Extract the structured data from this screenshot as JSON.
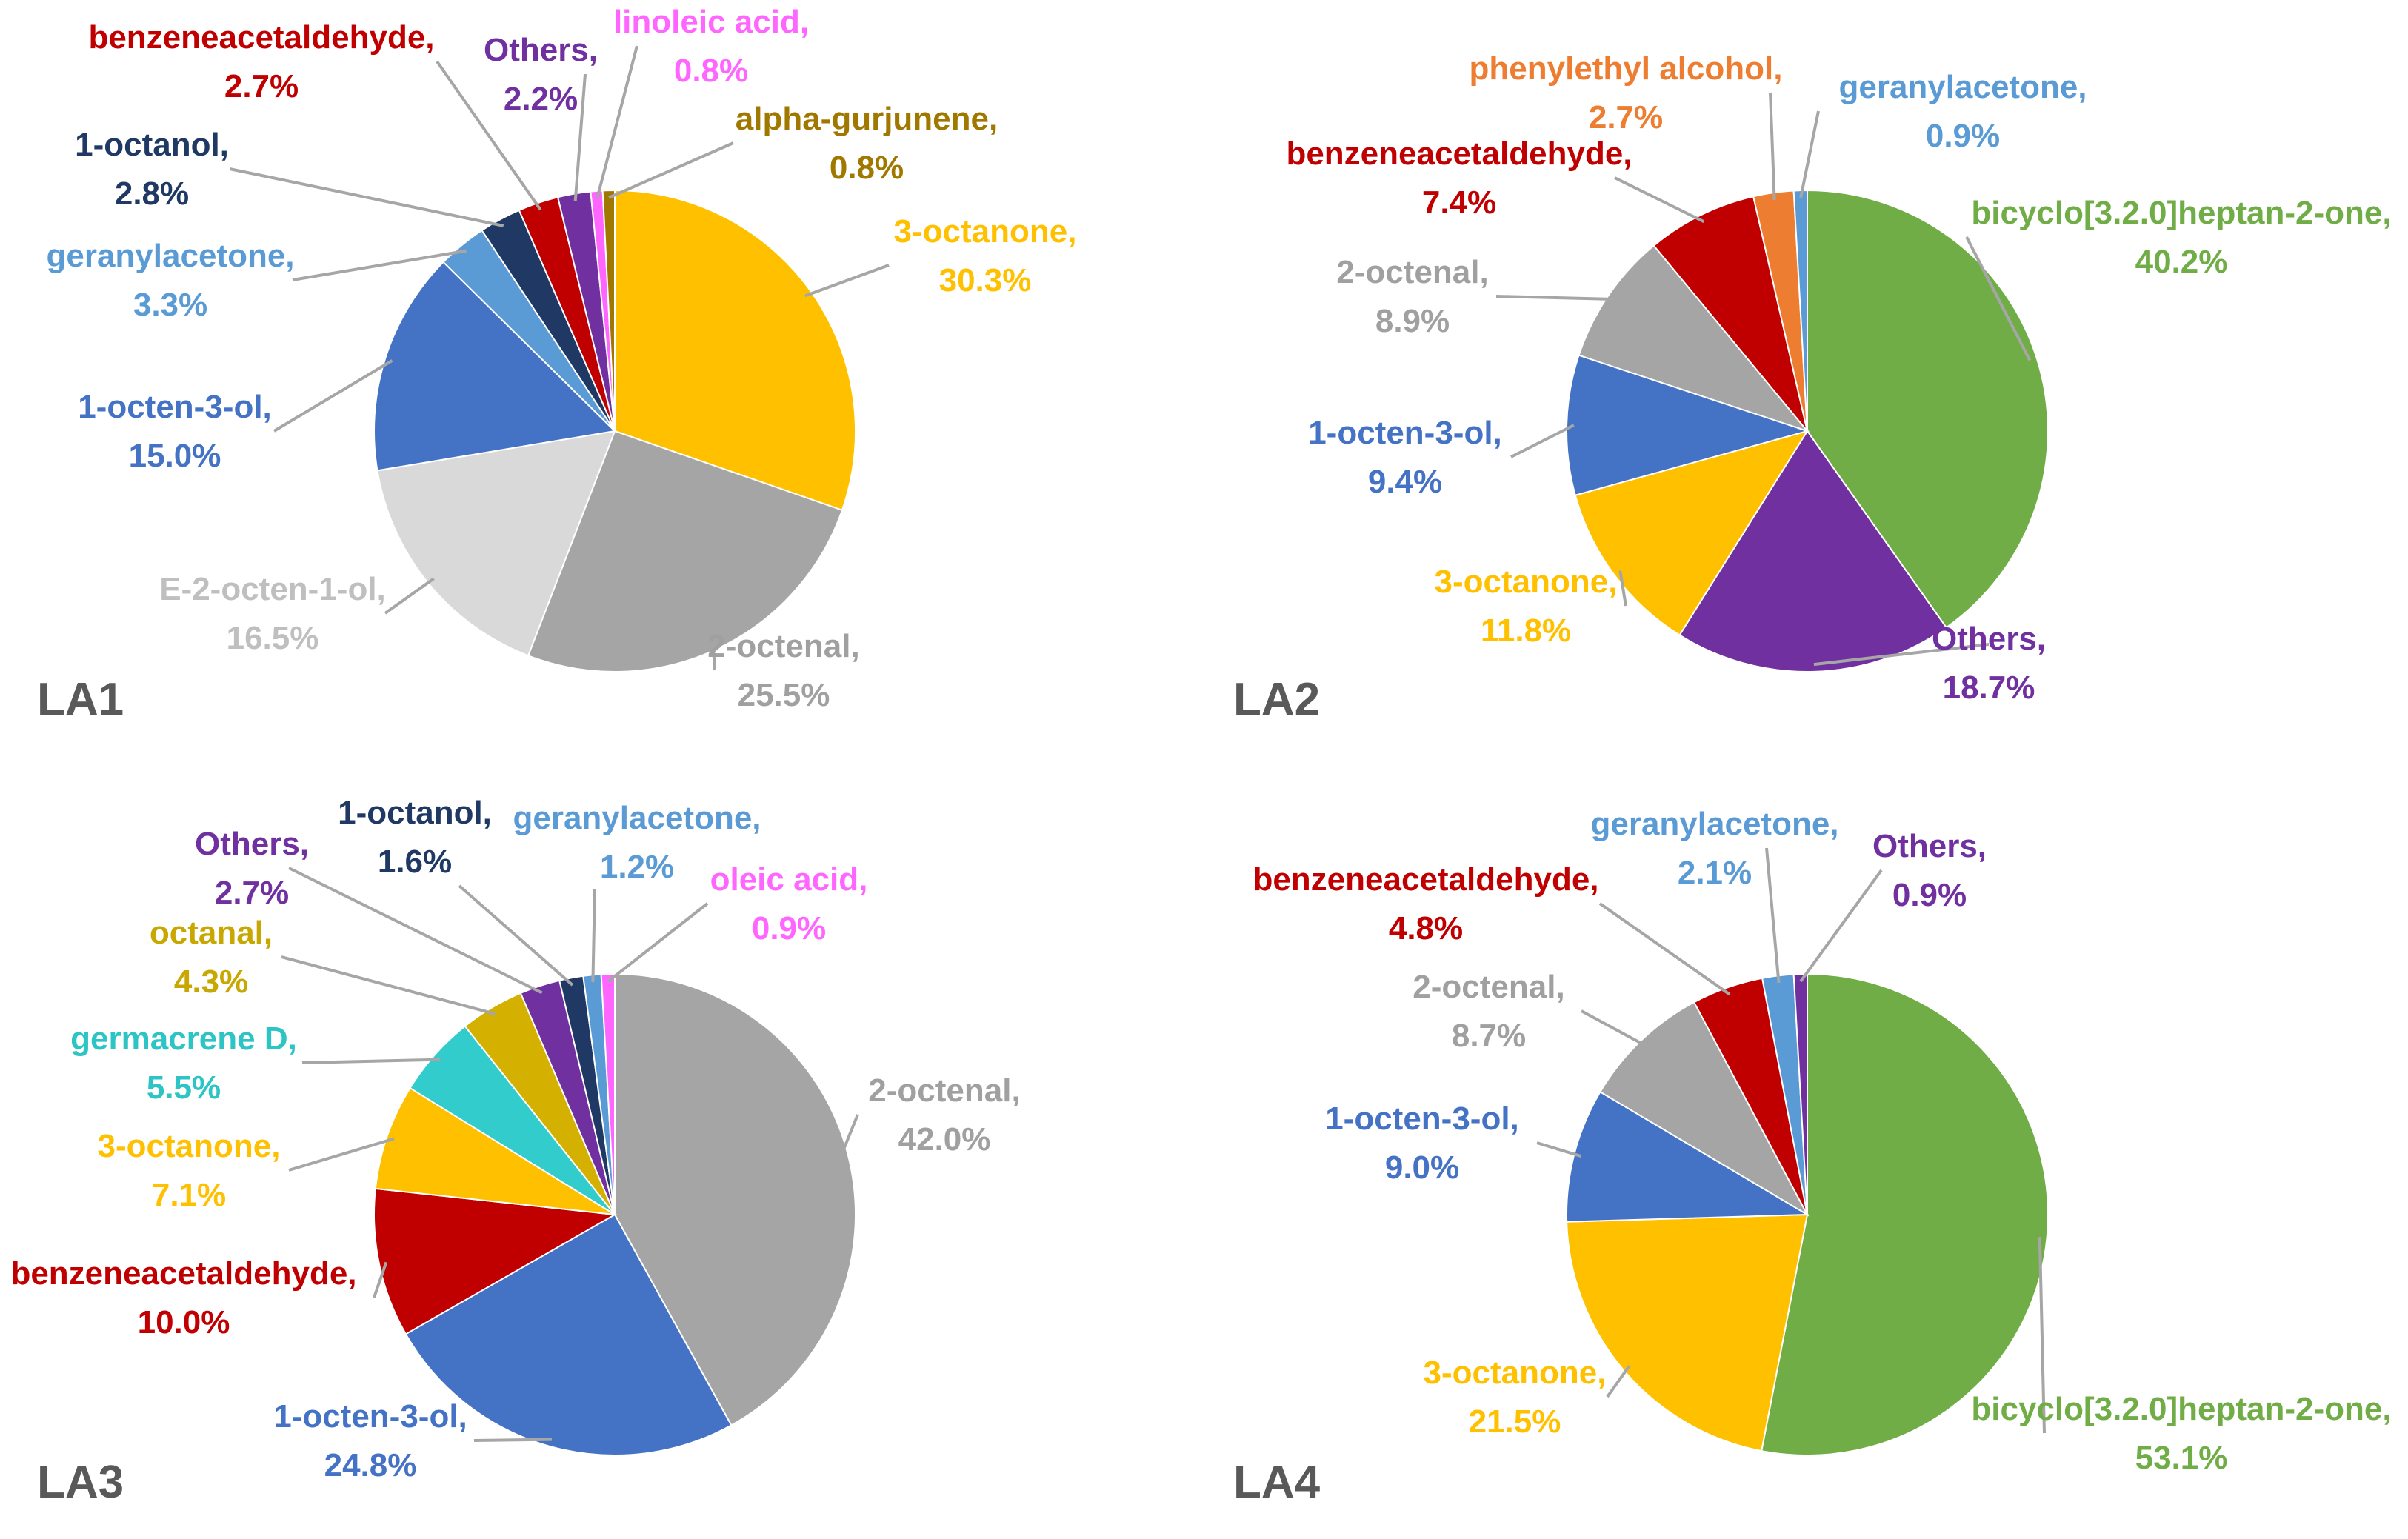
{
  "chart_data": [
    {
      "type": "pie",
      "title": "LA1",
      "slices": [
        {
          "label": "3-octanone",
          "value": 30.3,
          "display": "30.3%",
          "color": "#FFC000"
        },
        {
          "label": "2-octenal",
          "value": 25.5,
          "display": "25.5%",
          "color": "#A5A5A5"
        },
        {
          "label": "E-2-octen-1-ol",
          "value": 16.5,
          "display": "16.5%",
          "color": "#D9D9D9"
        },
        {
          "label": "1-octen-3-ol",
          "value": 15.0,
          "display": "15.0%",
          "color": "#4472C4"
        },
        {
          "label": "geranylacetone",
          "value": 3.3,
          "display": "3.3%",
          "color": "#5B9BD5"
        },
        {
          "label": "1-octanol",
          "value": 2.8,
          "display": "2.8%",
          "color": "#203864"
        },
        {
          "label": "benzeneacetaldehyde",
          "value": 2.7,
          "display": "2.7%",
          "color": "#C00000"
        },
        {
          "label": "Others",
          "value": 2.2,
          "display": "2.2%",
          "color": "#7030A0"
        },
        {
          "label": "linoleic acid",
          "value": 0.8,
          "display": "0.8%",
          "color": "#FF66FF"
        },
        {
          "label": "alpha-gurjunene",
          "value": 0.8,
          "display": "0.8%",
          "color": "#A07800"
        }
      ]
    },
    {
      "type": "pie",
      "title": "LA2",
      "slices": [
        {
          "label": "bicyclo[3.2.0]heptan-2-one",
          "value": 40.2,
          "display": "40.2%",
          "color": "#70AD47"
        },
        {
          "label": "Others",
          "value": 18.7,
          "display": "18.7%",
          "color": "#7030A0"
        },
        {
          "label": "3-octanone",
          "value": 11.8,
          "display": "11.8%",
          "color": "#FFC000"
        },
        {
          "label": "1-octen-3-ol",
          "value": 9.4,
          "display": "9.4%",
          "color": "#4472C4"
        },
        {
          "label": "2-octenal",
          "value": 8.9,
          "display": "8.9%",
          "color": "#A5A5A5"
        },
        {
          "label": "benzeneacetaldehyde",
          "value": 7.4,
          "display": "7.4%",
          "color": "#C00000"
        },
        {
          "label": "phenylethyl alcohol",
          "value": 2.7,
          "display": "2.7%",
          "color": "#ED7D31"
        },
        {
          "label": "geranylacetone",
          "value": 0.9,
          "display": "0.9%",
          "color": "#5B9BD5"
        }
      ]
    },
    {
      "type": "pie",
      "title": "LA3",
      "slices": [
        {
          "label": "2-octenal",
          "value": 42.0,
          "display": "42.0%",
          "color": "#A5A5A5"
        },
        {
          "label": "1-octen-3-ol",
          "value": 24.8,
          "display": "24.8%",
          "color": "#4472C4"
        },
        {
          "label": "benzeneacetaldehyde",
          "value": 10.0,
          "display": "10.0%",
          "color": "#C00000"
        },
        {
          "label": "3-octanone",
          "value": 7.1,
          "display": "7.1%",
          "color": "#FFC000"
        },
        {
          "label": "germacrene D",
          "value": 5.5,
          "display": "5.5%",
          "color": "#33CCCC"
        },
        {
          "label": "octanal",
          "value": 4.3,
          "display": "4.3%",
          "color": "#D4B000"
        },
        {
          "label": "Others",
          "value": 2.7,
          "display": "2.7%",
          "color": "#7030A0"
        },
        {
          "label": "1-octanol",
          "value": 1.6,
          "display": "1.6%",
          "color": "#203864"
        },
        {
          "label": "geranylacetone",
          "value": 1.2,
          "display": "1.2%",
          "color": "#5B9BD5"
        },
        {
          "label": "oleic acid",
          "value": 0.9,
          "display": "0.9%",
          "color": "#FF66FF"
        }
      ]
    },
    {
      "type": "pie",
      "title": "LA4",
      "slices": [
        {
          "label": "bicyclo[3.2.0]heptan-2-one",
          "value": 53.1,
          "display": "53.1%",
          "color": "#70AD47"
        },
        {
          "label": "3-octanone",
          "value": 21.5,
          "display": "21.5%",
          "color": "#FFC000"
        },
        {
          "label": "1-octen-3-ol",
          "value": 9.0,
          "display": "9.0%",
          "color": "#4472C4"
        },
        {
          "label": "2-octenal",
          "value": 8.7,
          "display": "8.7%",
          "color": "#A5A5A5"
        },
        {
          "label": "benzeneacetaldehyde",
          "value": 4.8,
          "display": "4.8%",
          "color": "#C00000"
        },
        {
          "label": "geranylacetone",
          "value": 2.1,
          "display": "2.1%",
          "color": "#5B9BD5"
        },
        {
          "label": "Others",
          "value": 0.9,
          "display": "0.9%",
          "color": "#7030A0"
        }
      ]
    }
  ]
}
